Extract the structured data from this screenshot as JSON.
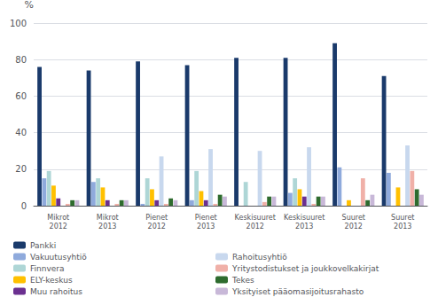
{
  "chart_data": {
    "type": "bar",
    "ylabel": "%",
    "categories": [
      "Mikrot\n2012",
      "Mikrot\n2013",
      "Pienet\n2012",
      "Pienet\n2013",
      "Keskisuuret\n2012",
      "Keskisuuret\n2013",
      "Suuret\n2012",
      "Suuret\n2013"
    ],
    "series": [
      {
        "name": "Pankki",
        "color": "#1a3a6b",
        "values": [
          76,
          74,
          79,
          77,
          81,
          81,
          89,
          71
        ]
      },
      {
        "name": "Vakuutusyhtiö",
        "color": "#8faadc",
        "values": [
          15,
          13,
          1,
          3,
          0,
          7,
          21,
          18
        ]
      },
      {
        "name": "Finnvera",
        "color": "#aed6d6",
        "values": [
          19,
          15,
          15,
          19,
          13,
          15,
          0,
          0
        ]
      },
      {
        "name": "ELY-keskus",
        "color": "#ffc000",
        "values": [
          11,
          10,
          9,
          8,
          0,
          9,
          3,
          10
        ]
      },
      {
        "name": "Muu rahoitus",
        "color": "#6b3090",
        "values": [
          4,
          3,
          3,
          3,
          0,
          5,
          0,
          0
        ]
      },
      {
        "name": "Rahoitusyhtiö",
        "color": "#c8d8ee",
        "values": [
          0,
          0,
          27,
          31,
          30,
          32,
          0,
          33
        ]
      },
      {
        "name": "Yritystodistukset ja joukkovelkakirjat",
        "color": "#f0b0a8",
        "values": [
          1,
          1,
          1,
          1,
          2,
          1,
          15,
          19
        ]
      },
      {
        "name": "Tekes",
        "color": "#2e6b2e",
        "values": [
          3,
          3,
          4,
          6,
          5,
          5,
          3,
          9
        ]
      },
      {
        "name": "Yksityiset pääomasijoitusrahasto",
        "color": "#c8b8d8",
        "values": [
          3,
          3,
          3,
          5,
          5,
          5,
          6,
          6
        ]
      }
    ],
    "ylim": [
      0,
      100
    ],
    "yticks": [
      0,
      20,
      40,
      60,
      80,
      100
    ],
    "grid": true,
    "legend": "bottom"
  }
}
